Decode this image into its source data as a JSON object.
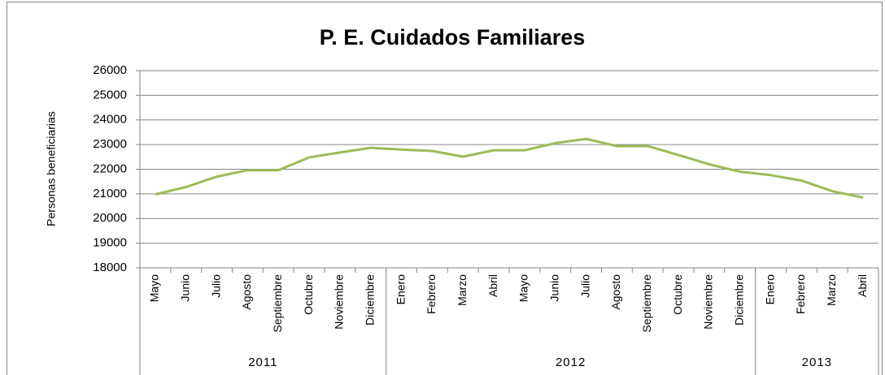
{
  "chart_data": {
    "type": "line",
    "title": "P. E. Cuidados Familiares",
    "y_label": "Personas beneficiarias",
    "categories": [
      "Mayo",
      "Junio",
      "Julio",
      "Agosto",
      "Septiembre",
      "Octubre",
      "Noviembre",
      "Diciembre",
      "Enero",
      "Febrero",
      "Marzo",
      "Abril",
      "Mayo",
      "Junio",
      "Julio",
      "Agosto",
      "Septiembre",
      "Octubre",
      "Noviembre",
      "Diciembre",
      "Enero",
      "Febrero",
      "Marzo",
      "Abril"
    ],
    "category_groups": [
      {
        "label": "2011",
        "count": 8
      },
      {
        "label": "2012",
        "count": 12
      },
      {
        "label": "2013",
        "count": 4
      }
    ],
    "series": [
      {
        "name": "Personas beneficiarias",
        "color": "#9bbb59",
        "values": [
          20980,
          21280,
          21700,
          21960,
          21960,
          22480,
          22680,
          22870,
          22800,
          22740,
          22510,
          22770,
          22770,
          23060,
          23230,
          22940,
          22940,
          22580,
          22200,
          21900,
          21760,
          21540,
          21110,
          20850
        ]
      }
    ],
    "ylim": [
      18000,
      26000
    ],
    "yticks": [
      18000,
      19000,
      20000,
      21000,
      22000,
      23000,
      24000,
      25000,
      26000
    ],
    "grid": true
  }
}
